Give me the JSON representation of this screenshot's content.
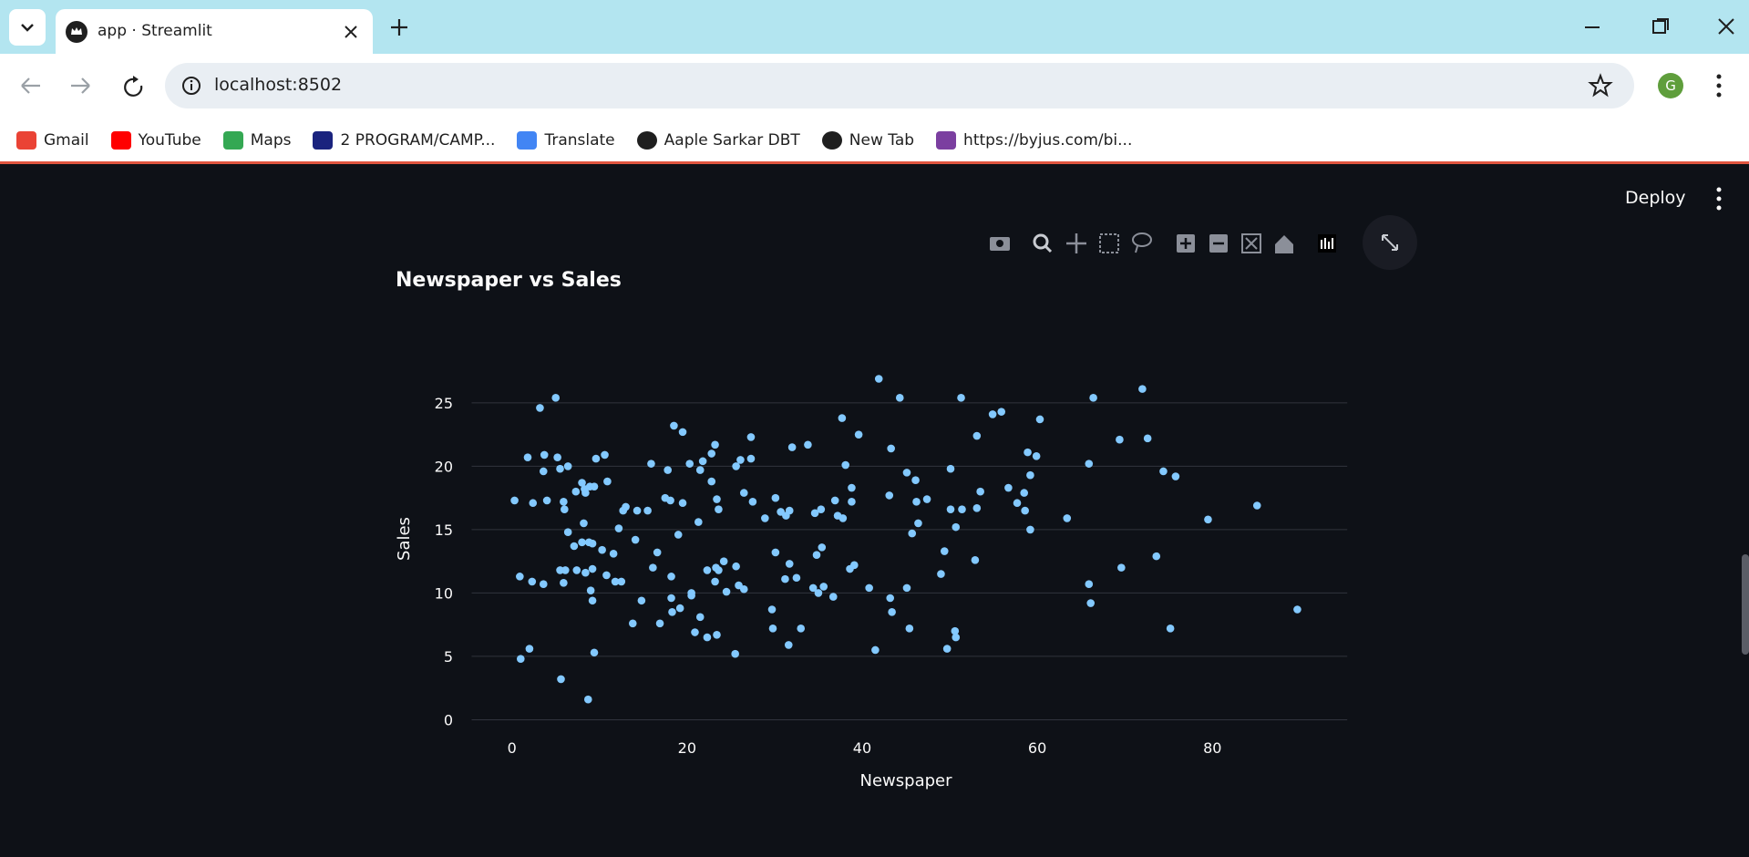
{
  "browser": {
    "tab_title": "app · Streamlit",
    "url": "localhost:8502",
    "profile_initial": "G",
    "bookmarks": [
      "Gmail",
      "YouTube",
      "Maps",
      "2 PROGRAM/CAMP...",
      "Translate",
      "Aaple Sarkar DBT",
      "New Tab",
      "https://byjus.com/bi..."
    ]
  },
  "app": {
    "deploy": "Deploy"
  },
  "chart_data": {
    "type": "scatter",
    "title": "Newspaper vs Sales",
    "x_label": "Newspaper",
    "y_label": "Sales",
    "color": "#83c9ff",
    "grid": true,
    "xlim": [
      -4.6,
      95.4
    ],
    "ylim": [
      -1.4,
      27.9
    ],
    "xticks": [
      0,
      20,
      40,
      60,
      80
    ],
    "yticks": [
      0,
      5,
      10,
      15,
      20,
      25
    ],
    "x": [
      0.3,
      0.9,
      1.0,
      1.8,
      2.0,
      2.3,
      2.4,
      3.2,
      3.6,
      3.6,
      3.7,
      4.0,
      5.0,
      5.2,
      5.5,
      5.5,
      5.6,
      5.9,
      5.9,
      6.0,
      6.1,
      6.4,
      6.4,
      7.1,
      7.3,
      7.4,
      8.0,
      8.2,
      8.0,
      8.3,
      8.4,
      8.4,
      8.7,
      8.8,
      8.9,
      9.0,
      9.2,
      9.2,
      9.2,
      9.4,
      9.4,
      9.6,
      10.3,
      10.6,
      10.8,
      10.9,
      11.6,
      11.8,
      12.2,
      12.5,
      12.7,
      13.0,
      13.8,
      14.1,
      14.3,
      14.8,
      15.5,
      15.9,
      16.1,
      16.6,
      16.9,
      17.5,
      17.8,
      18.1,
      18.2,
      18.2,
      18.3,
      18.5,
      19.0,
      19.2,
      19.5,
      19.5,
      20.3,
      20.5,
      20.5,
      20.9,
      21.3,
      21.5,
      21.5,
      21.8,
      22.3,
      22.3,
      22.8,
      22.8,
      23.2,
      23.2,
      23.3,
      23.4,
      23.6,
      23.6,
      23.4,
      24.2,
      24.5,
      25.5,
      25.6,
      25.6,
      25.9,
      26.1,
      26.5,
      26.5,
      27.3,
      27.3,
      27.5,
      28.9,
      29.7,
      29.8,
      30.1,
      30.1,
      30.7,
      31.2,
      31.3,
      31.6,
      31.7,
      31.7,
      32.0,
      32.5,
      33.0,
      33.8,
      34.4,
      34.6,
      34.8,
      35.0,
      35.3,
      35.4,
      35.6,
      36.7,
      36.9,
      37.2,
      37.7,
      37.8,
      38.1,
      38.6,
      38.8,
      38.8,
      39.1,
      39.6,
      40.8,
      41.5,
      41.9,
      43.1,
      43.3,
      43.2,
      43.4,
      44.3,
      45.1,
      45.1,
      45.4,
      45.7,
      46.1,
      46.2,
      46.4,
      47.4,
      49.0,
      49.4,
      49.7,
      50.1,
      50.1,
      50.6,
      50.7,
      50.7,
      51.3,
      51.4,
      52.9,
      53.1,
      53.1,
      53.5,
      54.9,
      55.9,
      56.7,
      57.7,
      58.5,
      58.6,
      58.9,
      59.2,
      59.2,
      59.9,
      60.3,
      63.4,
      65.9,
      65.9,
      66.1,
      66.4,
      69.4,
      69.6,
      72.0,
      72.6,
      73.6,
      74.4,
      75.2,
      75.8,
      79.5,
      85.1,
      89.7
    ],
    "values": [
      17.3,
      11.3,
      4.8,
      20.7,
      5.6,
      10.9,
      17.1,
      24.6,
      10.7,
      19.6,
      20.9,
      17.3,
      25.4,
      20.7,
      19.8,
      11.8,
      3.2,
      10.8,
      17.2,
      16.6,
      11.8,
      20.0,
      14.8,
      13.7,
      18.0,
      11.8,
      14.0,
      15.5,
      18.7,
      18.2,
      17.9,
      11.6,
      1.6,
      14.0,
      18.4,
      10.2,
      11.9,
      13.9,
      9.4,
      5.3,
      18.4,
      20.6,
      13.4,
      20.9,
      11.4,
      18.8,
      13.1,
      10.9,
      15.1,
      10.9,
      16.5,
      16.8,
      7.6,
      14.2,
      16.5,
      9.4,
      16.5,
      20.2,
      12.0,
      13.2,
      7.6,
      17.5,
      19.7,
      17.3,
      11.3,
      9.6,
      8.5,
      23.2,
      14.6,
      8.8,
      17.1,
      22.7,
      20.2,
      9.8,
      10.0,
      6.9,
      15.6,
      19.7,
      8.1,
      20.4,
      6.5,
      11.8,
      18.8,
      21.0,
      21.7,
      10.9,
      12.0,
      17.4,
      11.8,
      16.6,
      6.7,
      12.5,
      10.1,
      5.2,
      12.1,
      20.0,
      10.6,
      20.5,
      10.3,
      17.9,
      20.6,
      22.3,
      17.2,
      15.9,
      8.7,
      7.2,
      13.2,
      17.5,
      16.4,
      11.1,
      16.1,
      5.9,
      16.5,
      12.3,
      21.5,
      11.2,
      7.2,
      21.7,
      10.4,
      16.3,
      13.0,
      10.0,
      16.6,
      13.6,
      10.5,
      9.7,
      17.3,
      16.1,
      23.8,
      15.9,
      20.1,
      11.9,
      17.2,
      18.3,
      12.2,
      22.5,
      10.4,
      5.5,
      26.9,
      17.7,
      21.4,
      9.6,
      8.5,
      25.4,
      10.4,
      19.5,
      7.2,
      14.7,
      18.9,
      17.2,
      15.5,
      17.4,
      11.5,
      13.3,
      5.6,
      19.8,
      16.6,
      7.0,
      6.5,
      15.2,
      25.4,
      16.6,
      12.6,
      22.4,
      16.7,
      18.0,
      24.1,
      24.3,
      18.3,
      17.1,
      17.9,
      16.5,
      21.1,
      19.3,
      15.0,
      20.8,
      23.7,
      15.9,
      20.2,
      10.7,
      9.2,
      25.4,
      22.1,
      12.0,
      26.1,
      22.2,
      12.9,
      19.6,
      7.2,
      19.2,
      15.8,
      16.9,
      8.7
    ]
  }
}
